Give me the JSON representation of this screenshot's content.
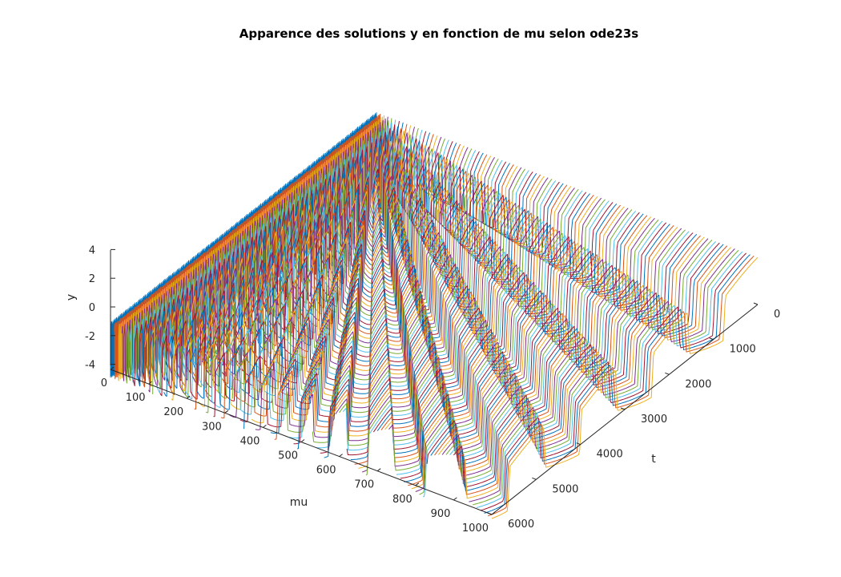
{
  "chart_data": {
    "type": "line",
    "subtype": "3d-waterfall",
    "title": "Apparence des solutions y en fonction de mu selon ode23s",
    "xlabel": "mu",
    "ylabel": "t",
    "zlabel": "y",
    "mu_ticks": [
      "0",
      "100",
      "200",
      "300",
      "400",
      "500",
      "600",
      "700",
      "800",
      "900",
      "1000"
    ],
    "t_ticks": [
      "0",
      "1000",
      "2000",
      "3000",
      "4000",
      "5000",
      "6000"
    ],
    "y_ticks": [
      "4",
      "2",
      "0",
      "-2",
      "-4"
    ],
    "mu_range": [
      0,
      1000
    ],
    "t_range": [
      0,
      6000
    ],
    "y_range": [
      -4,
      4
    ],
    "mu_step": 10,
    "solution_amplitude": 2,
    "grid": false,
    "colors": [
      "#0072BD",
      "#D95319",
      "#EDB120",
      "#7E2F8E",
      "#77AC30",
      "#4DBEEE",
      "#A2142F"
    ]
  }
}
